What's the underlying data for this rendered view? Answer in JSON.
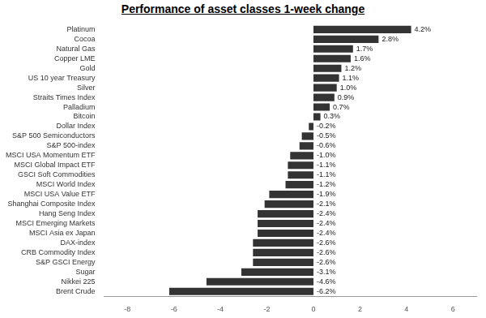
{
  "chart_data": {
    "type": "bar",
    "orientation": "horizontal",
    "title": "Performance of asset classes 1-week change",
    "categories": [
      "Platinum",
      "Cocoa",
      "Natural Gas",
      "Copper LME",
      "Gold",
      "US 10 year Treasury",
      "Silver",
      "Straits Times Index",
      "Palladium",
      "Bitcoin",
      "Dollar Index",
      "S&P 500 Semiconductors",
      "S&P 500-index",
      "MSCI USA Momentum ETF",
      "MSCI Global Impact ETF",
      "GSCI Soft Commodities",
      "MSCI World Index",
      "MSCI USA Value ETF",
      "Shanghai Composite Index",
      "Hang Seng Index",
      "MSCI Emerging Markets",
      "MSCI Asia ex Japan",
      "DAX-index",
      "CRB Commodity Index",
      "S&P GSCI Energy",
      "Sugar",
      "Nikkei 225",
      "Brent Crude"
    ],
    "values": [
      4.2,
      2.8,
      1.7,
      1.6,
      1.2,
      1.1,
      1.0,
      0.9,
      0.7,
      0.3,
      -0.2,
      -0.5,
      -0.6,
      -1.0,
      -1.1,
      -1.1,
      -1.2,
      -1.9,
      -2.1,
      -2.4,
      -2.4,
      -2.4,
      -2.6,
      -2.6,
      -2.6,
      -3.1,
      -4.6,
      -6.2
    ],
    "value_labels": [
      "4.2%",
      "2.8%",
      "1.7%",
      "1.6%",
      "1.2%",
      "1.1%",
      "1.0%",
      "0.9%",
      "0.7%",
      "0.3%",
      "-0.2%",
      "-0.5%",
      "-0.6%",
      "-1.0%",
      "-1.1%",
      "-1.1%",
      "-1.2%",
      "-1.9%",
      "-2.1%",
      "-2.4%",
      "-2.4%",
      "-2.4%",
      "-2.6%",
      "-2.6%",
      "-2.6%",
      "-3.1%",
      "-4.6%",
      "-6.2%"
    ],
    "data_labels": true,
    "color": "#333333",
    "xlim": [
      -9,
      7
    ],
    "xticks": [
      -8,
      -6,
      -4,
      -2,
      0,
      2,
      4,
      6
    ],
    "grid": false
  }
}
